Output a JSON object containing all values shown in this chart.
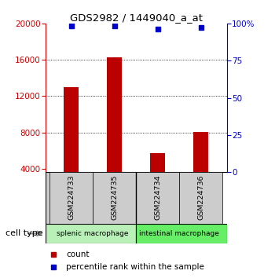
{
  "title": "GDS2982 / 1449040_a_at",
  "samples": [
    "GSM224733",
    "GSM224735",
    "GSM224734",
    "GSM224736"
  ],
  "counts": [
    13000,
    16300,
    5700,
    8100
  ],
  "percentiles": [
    98.5,
    98.5,
    96.5,
    97.5
  ],
  "bar_color": "#BB0000",
  "percentile_color": "#0000CC",
  "ylim_left": [
    3600,
    20000
  ],
  "ylim_right": [
    0,
    100
  ],
  "yticks_left": [
    4000,
    8000,
    12000,
    16000,
    20000
  ],
  "yticks_right": [
    0,
    25,
    50,
    75,
    100
  ],
  "left_tick_color": "#CC0000",
  "right_tick_color": "#0000CC",
  "background_color": "#ffffff",
  "sample_box_color": "#cccccc",
  "group1_color": "#b8f0b8",
  "group2_color": "#66ee66",
  "group1_label": "splenic macrophage",
  "group2_label": "intestinal macrophage",
  "bar_width": 0.35
}
